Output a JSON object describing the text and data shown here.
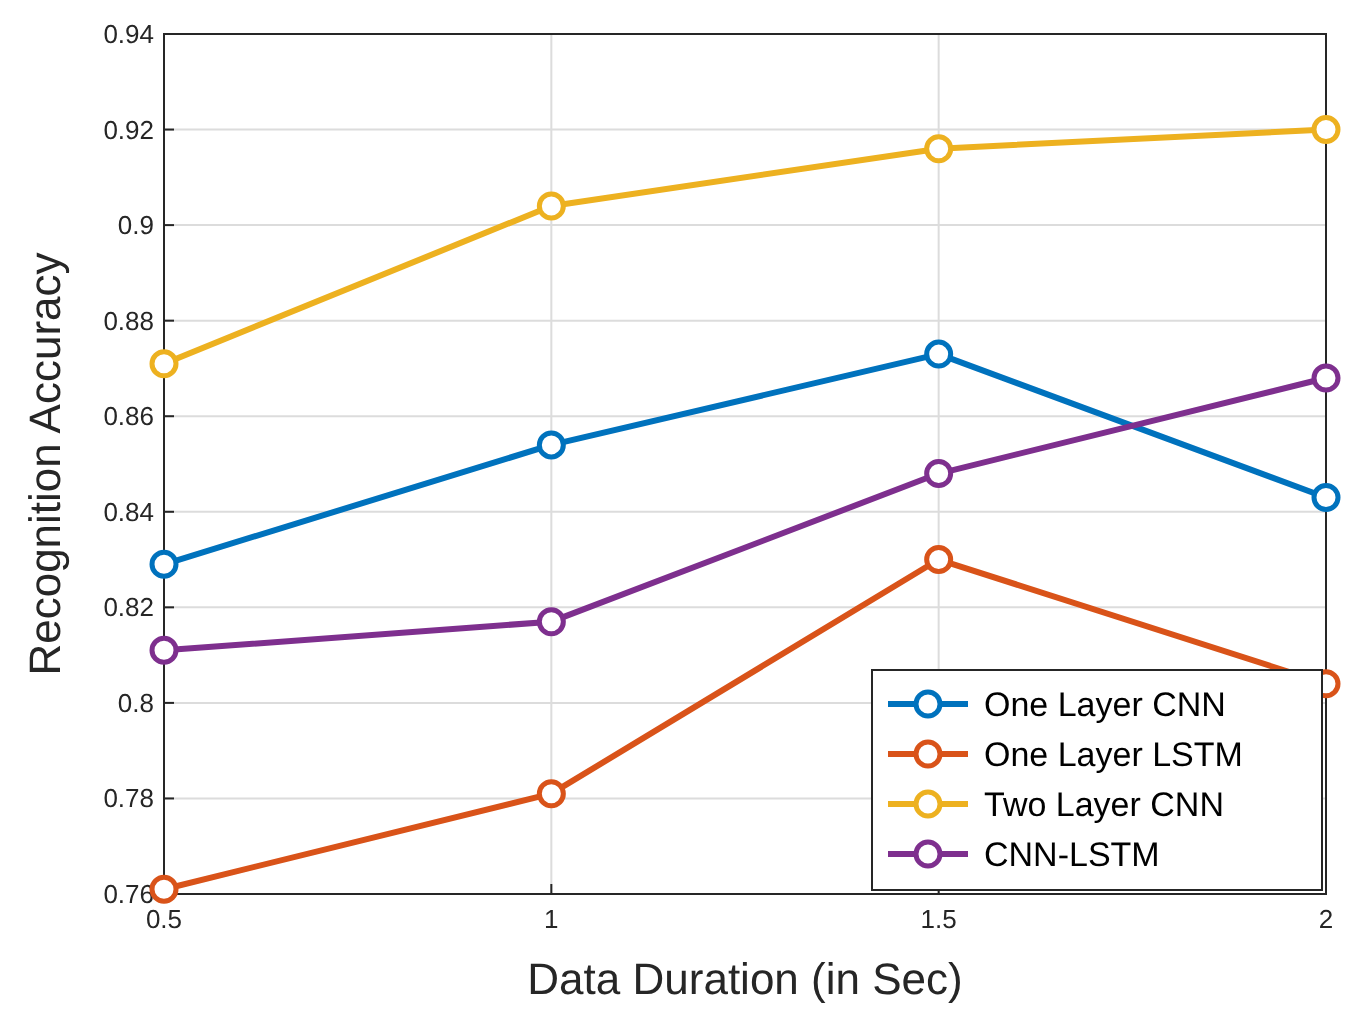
{
  "chart_data": {
    "type": "line",
    "xlabel": "Data Duration (in Sec)",
    "ylabel": "Recognition Accuracy",
    "x": [
      0.5,
      1,
      1.5,
      2
    ],
    "series": [
      {
        "name": "One Layer CNN",
        "color": "#0072bd",
        "values": [
          0.829,
          0.854,
          0.873,
          0.843
        ]
      },
      {
        "name": "One Layer LSTM",
        "color": "#d95319",
        "values": [
          0.761,
          0.781,
          0.83,
          0.804
        ]
      },
      {
        "name": "Two Layer CNN",
        "color": "#edb120",
        "values": [
          0.871,
          0.904,
          0.916,
          0.92
        ]
      },
      {
        "name": "CNN-LSTM",
        "color": "#7e2f8e",
        "values": [
          0.811,
          0.817,
          0.848,
          0.868
        ]
      }
    ],
    "xlim": [
      0.5,
      2
    ],
    "xticks": [
      0.5,
      1,
      1.5,
      2
    ],
    "ylim": [
      0.76,
      0.94
    ],
    "yticks": [
      0.76,
      0.78,
      0.8,
      0.82,
      0.84,
      0.86,
      0.88,
      0.9,
      0.92,
      0.94
    ],
    "grid": true,
    "legend": "bottom right",
    "marker": "circle",
    "line_style": "solid"
  }
}
